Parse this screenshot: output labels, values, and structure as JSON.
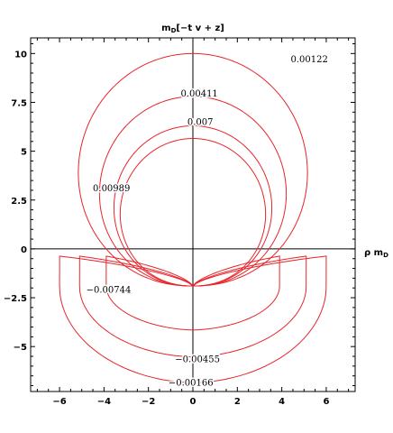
{
  "chart_data": {
    "type": "line",
    "title": "mₘ[−t v + z]",
    "title_parts": {
      "m": "m",
      "sub": "D",
      "rest": "[−t v + z]"
    },
    "xlabel": "ρ mₘ",
    "xlabel_parts": {
      "rho": "ρ m",
      "sub": "D"
    },
    "ylabel": "",
    "xlim": [
      -7.3,
      7.3
    ],
    "ylim": [
      -7.3,
      10.8
    ],
    "xticks": [
      -6,
      -4,
      -2,
      0,
      2,
      4,
      6
    ],
    "xtick_labels": [
      "−6",
      "−4",
      "−2",
      "0",
      "2",
      "4",
      "6"
    ],
    "yticks": [
      -5,
      -2.5,
      0,
      2.5,
      5,
      7.5,
      10
    ],
    "ytick_labels": [
      "−5",
      "−2.5",
      "0",
      "2.5",
      "5",
      "7.5",
      "10"
    ],
    "grid": false,
    "line_color": "#e8242a",
    "center": [
      0,
      -1.9
    ],
    "upper_contours": [
      {
        "value": "0.00122",
        "radius": 11.9,
        "y_top": 10.0
      },
      {
        "value": "0.00411",
        "radius": 9.7
      },
      {
        "value": "0.007",
        "radius": 8.2
      },
      {
        "value": "0.00989",
        "radius": 7.55
      }
    ],
    "lower_contours": [
      {
        "value": "−0.00166",
        "x_extent": 6.0,
        "y_bottom": -6.8
      },
      {
        "value": "−0.00455",
        "x_extent": 5.1,
        "y_bottom": -5.45
      },
      {
        "value": "−0.00744",
        "x_extent": 3.9,
        "y_bottom": -4.05
      }
    ],
    "contour_labels": [
      {
        "text": "0.00122",
        "x": 4.4,
        "y": 9.55
      },
      {
        "text": "0.00411",
        "x": -0.55,
        "y": 7.8
      },
      {
        "text": "0.007",
        "x": -0.25,
        "y": 6.35
      },
      {
        "text": "0.00989",
        "x": -4.5,
        "y": 2.95
      },
      {
        "text": "−0.00744",
        "x": -4.8,
        "y": -2.25
      },
      {
        "text": "−0.00455",
        "x": -0.8,
        "y": -5.8
      },
      {
        "text": "−0.00166",
        "x": -1.1,
        "y": -7.0
      }
    ]
  }
}
